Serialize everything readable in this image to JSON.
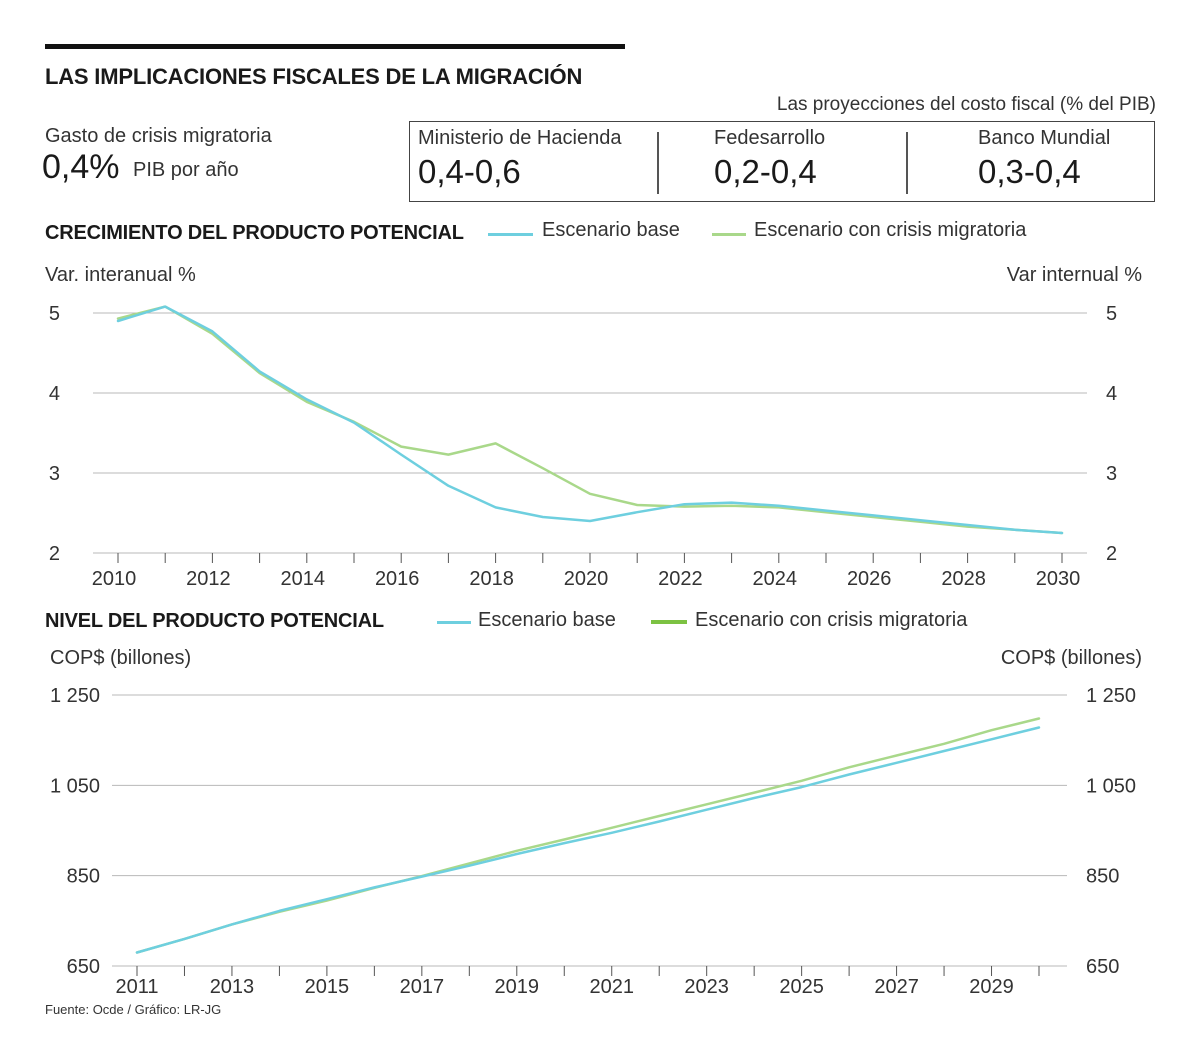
{
  "header": {
    "title": "LAS IMPLICACIONES FISCALES DE LA MIGRACIÓN"
  },
  "gasto": {
    "label": "Gasto de crisis migratoria",
    "value": "0,4%",
    "unit": "PIB por año"
  },
  "projections": {
    "caption": "Las proyecciones del costo fiscal (% del PIB)",
    "items": [
      {
        "name": "Ministerio de Hacienda",
        "value": "0,4-0,6"
      },
      {
        "name": "Fedesarrollo",
        "value": "0,2-0,4"
      },
      {
        "name": "Banco Mundial",
        "value": "0,3-0,4"
      }
    ]
  },
  "colors": {
    "base": "#6ecfdf",
    "crisis": "#a9d88a",
    "crisis_legend_level": "#7cc242",
    "grid": "#b8b8b8"
  },
  "chart_data": [
    {
      "type": "line",
      "title": "CRECIMIENTO DEL PRODUCTO POTENCIAL",
      "ylabel_left": "Var. interanual %",
      "ylabel_right": "Var internual %",
      "ylim": [
        2,
        5
      ],
      "yticks": [
        "5",
        "4",
        "3",
        "2"
      ],
      "yticks_values": [
        5,
        4,
        3,
        2
      ],
      "x": [
        2010,
        2011,
        2012,
        2013,
        2014,
        2015,
        2016,
        2017,
        2018,
        2019,
        2020,
        2021,
        2022,
        2023,
        2024,
        2025,
        2026,
        2027,
        2028,
        2029,
        2030
      ],
      "xtick_labels": [
        "2010",
        "2012",
        "2014",
        "2016",
        "2018",
        "2020",
        "2022",
        "2024",
        "2026",
        "2028",
        "2030"
      ],
      "xtick_values": [
        2010,
        2012,
        2014,
        2016,
        2018,
        2020,
        2022,
        2024,
        2026,
        2028,
        2030
      ],
      "series": [
        {
          "name": "Escenario base",
          "color": "#6ecfdf",
          "values": [
            4.9,
            5.08,
            4.77,
            4.27,
            3.92,
            3.63,
            3.23,
            2.84,
            2.57,
            2.45,
            2.4,
            2.51,
            2.61,
            2.63,
            2.59,
            2.53,
            2.47,
            2.41,
            2.35,
            2.29,
            2.25
          ]
        },
        {
          "name": "Escenario con crisis migratoria",
          "color": "#a9d88a",
          "values": [
            4.93,
            5.08,
            4.74,
            4.25,
            3.89,
            3.64,
            3.33,
            3.23,
            3.37,
            3.06,
            2.74,
            2.6,
            2.58,
            2.59,
            2.57,
            2.51,
            2.45,
            2.39,
            2.33,
            2.29,
            2.25
          ]
        }
      ]
    },
    {
      "type": "line",
      "title": "NIVEL DEL PRODUCTO POTENCIAL",
      "ylabel_left": "COP$ (billones)",
      "ylabel_right": "COP$ (billones)",
      "ylim": [
        650,
        1250
      ],
      "yticks": [
        "1 250",
        "1 050",
        "850",
        "650"
      ],
      "yticks_values": [
        1250,
        1050,
        850,
        650
      ],
      "x": [
        2011,
        2012,
        2013,
        2014,
        2015,
        2016,
        2017,
        2018,
        2019,
        2020,
        2021,
        2022,
        2023,
        2024,
        2025,
        2026,
        2027,
        2028,
        2029,
        2030
      ],
      "xtick_labels": [
        "2011",
        "2013",
        "2015",
        "2017",
        "2019",
        "2021",
        "2023",
        "2025",
        "2027",
        "2029"
      ],
      "xtick_values": [
        2011,
        2013,
        2015,
        2017,
        2019,
        2021,
        2023,
        2025,
        2027,
        2029
      ],
      "series": [
        {
          "name": "Escenario base",
          "color": "#6ecfdf",
          "values": [
            680,
            710,
            742,
            772,
            798,
            824,
            848,
            872,
            898,
            922,
            945,
            970,
            996,
            1022,
            1046,
            1074,
            1100,
            1126,
            1152,
            1178
          ]
        },
        {
          "name": "Escenario con crisis migratoria",
          "color": "#a9d88a",
          "values": [
            680,
            710,
            742,
            770,
            795,
            823,
            849,
            877,
            905,
            930,
            956,
            982,
            1008,
            1034,
            1060,
            1090,
            1116,
            1142,
            1172,
            1198
          ]
        }
      ]
    }
  ],
  "source": "Fuente: Ocde / Gráfico: LR-JG"
}
